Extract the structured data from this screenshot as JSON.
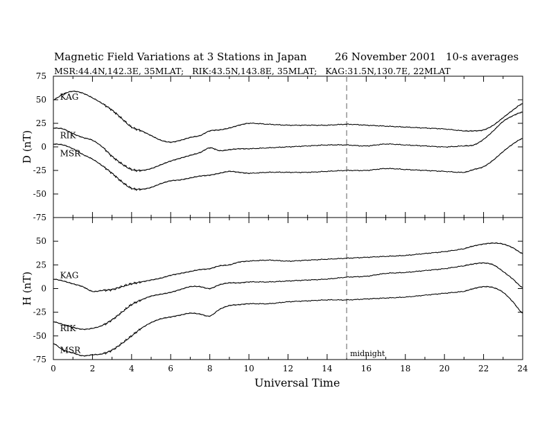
{
  "title": {
    "main": "Magnetic Field Variations at 3 Stations in Japan",
    "date": "26 November 2001",
    "averaging": "10-s averages",
    "stations": "MSR:44.4N,142.3E, 35MLAT;   RIK:43.5N,143.8E, 35MLAT;   KAG:31.5N,130.7E, 22MLAT"
  },
  "chart_data": [
    {
      "type": "line",
      "ylabel": "D (nT)",
      "xlim": [
        0,
        24
      ],
      "ylim": [
        -75,
        75
      ],
      "yticks": [
        75,
        50,
        25,
        0,
        -25,
        -50,
        -75
      ],
      "grid": false,
      "series": [
        {
          "name": "KAG",
          "x": [
            0,
            0.5,
            1,
            1.5,
            2,
            2.5,
            3,
            3.5,
            4,
            4.5,
            5,
            5.5,
            6,
            6.5,
            7,
            7.5,
            8,
            8.5,
            9,
            9.5,
            10,
            11,
            12,
            13,
            14,
            15,
            16,
            17,
            18,
            19,
            20,
            21,
            21.5,
            22,
            22.5,
            23,
            23.5,
            24
          ],
          "y": [
            50,
            56,
            59,
            57,
            52,
            46,
            39,
            30,
            21,
            17,
            12,
            7,
            5,
            7,
            10,
            12,
            17,
            18,
            20,
            23,
            25,
            24,
            23,
            23,
            23,
            24,
            23,
            22,
            21,
            20,
            19,
            17,
            17,
            18,
            23,
            31,
            39,
            46
          ]
        },
        {
          "name": "RIK",
          "x": [
            0,
            0.5,
            1,
            1.5,
            2,
            2.5,
            3,
            3.5,
            4,
            4.5,
            5,
            5.5,
            6,
            6.5,
            7,
            7.5,
            8,
            8.5,
            9,
            9.5,
            10,
            11,
            12,
            13,
            14,
            15,
            16,
            17,
            18,
            19,
            20,
            21,
            21.5,
            22,
            22.5,
            23,
            23.5,
            24
          ],
          "y": [
            20,
            19,
            14,
            10,
            7,
            0,
            -10,
            -18,
            -24,
            -25,
            -23,
            -19,
            -15,
            -12,
            -9,
            -6,
            -1,
            -4,
            -3,
            -2,
            -2,
            -1,
            0,
            1,
            2,
            2,
            1,
            3,
            2,
            1,
            0,
            1,
            2,
            8,
            17,
            27,
            33,
            37
          ]
        },
        {
          "name": "MSR",
          "x": [
            0,
            0.5,
            1,
            1.5,
            2,
            2.5,
            3,
            3.5,
            4,
            4.5,
            5,
            5.5,
            6,
            6.5,
            7,
            7.5,
            8,
            8.5,
            9,
            9.5,
            10,
            11,
            12,
            13,
            14,
            15,
            16,
            17,
            18,
            19,
            20,
            21,
            21.5,
            22,
            22.5,
            23,
            23.5,
            24
          ],
          "y": [
            3,
            2,
            -2,
            -8,
            -13,
            -20,
            -28,
            -37,
            -44,
            -45,
            -43,
            -39,
            -36,
            -35,
            -33,
            -31,
            -30,
            -28,
            -26,
            -27,
            -28,
            -27,
            -27,
            -27,
            -26,
            -25,
            -25,
            -23,
            -24,
            -25,
            -26,
            -27,
            -24,
            -21,
            -14,
            -5,
            3,
            9
          ]
        }
      ],
      "labels": [
        {
          "text": "KAG",
          "x": 0.2,
          "y": 53
        },
        {
          "text": "RIK",
          "x": 0.2,
          "y": 12
        },
        {
          "text": "MSR",
          "x": 0.2,
          "y": -7
        }
      ]
    },
    {
      "type": "line",
      "ylabel": "H (nT)",
      "xlabel": "Universal Time",
      "xlim": [
        0,
        24
      ],
      "ylim": [
        -75,
        75
      ],
      "yticks": [
        50,
        25,
        0,
        -25,
        -50,
        -75
      ],
      "xticks": [
        0,
        2,
        4,
        6,
        8,
        10,
        12,
        14,
        16,
        18,
        20,
        22,
        24
      ],
      "grid": false,
      "series": [
        {
          "name": "KAG",
          "x": [
            0,
            0.5,
            1,
            1.5,
            2,
            2.5,
            3,
            3.5,
            4,
            4.5,
            5,
            5.5,
            6,
            6.5,
            7,
            7.5,
            8,
            8.5,
            9,
            9.5,
            10,
            11,
            12,
            13,
            14,
            15,
            16,
            17,
            18,
            19,
            20,
            21,
            21.5,
            22,
            22.5,
            23,
            23.5,
            24
          ],
          "y": [
            10,
            8,
            5,
            2,
            -3,
            -2,
            -1,
            2,
            5,
            7,
            9,
            11,
            14,
            16,
            18,
            20,
            21,
            24,
            25,
            28,
            29,
            30,
            29,
            30,
            31,
            32,
            33,
            34,
            35,
            37,
            39,
            42,
            45,
            47,
            48,
            47,
            43,
            37
          ]
        },
        {
          "name": "RIK",
          "x": [
            0,
            0.5,
            1,
            1.5,
            2,
            2.5,
            3,
            3.5,
            4,
            4.5,
            5,
            5.5,
            6,
            6.5,
            7,
            7.5,
            8,
            8.5,
            9,
            9.5,
            10,
            11,
            12,
            13,
            14,
            15,
            16,
            17,
            18,
            19,
            20,
            21,
            21.5,
            22,
            22.5,
            23,
            23.5,
            24
          ],
          "y": [
            -35,
            -38,
            -41,
            -43,
            -42,
            -39,
            -33,
            -25,
            -17,
            -12,
            -8,
            -6,
            -4,
            -1,
            2,
            2,
            0,
            4,
            6,
            6,
            7,
            7,
            8,
            9,
            10,
            12,
            13,
            16,
            17,
            19,
            21,
            24,
            26,
            27,
            25,
            18,
            10,
            1
          ]
        },
        {
          "name": "MSR",
          "x": [
            0,
            0.5,
            1,
            1.5,
            2,
            2.5,
            3,
            3.5,
            4,
            4.5,
            5,
            5.5,
            6,
            6.5,
            7,
            7.5,
            8,
            8.5,
            9,
            9.5,
            10,
            11,
            12,
            13,
            14,
            15,
            16,
            17,
            18,
            19,
            20,
            21,
            21.5,
            22,
            22.5,
            23,
            23.5,
            24
          ],
          "y": [
            -58,
            -65,
            -68,
            -71,
            -70,
            -69,
            -65,
            -58,
            -50,
            -42,
            -36,
            -32,
            -30,
            -28,
            -26,
            -27,
            -29,
            -22,
            -18,
            -17,
            -16,
            -16,
            -14,
            -13,
            -12,
            -12,
            -11,
            -10,
            -9,
            -7,
            -5,
            -3,
            0,
            2,
            1,
            -4,
            -14,
            -26
          ]
        }
      ],
      "labels": [
        {
          "text": "KAG",
          "x": 0.2,
          "y": 14
        },
        {
          "text": "RIK",
          "x": 0.2,
          "y": -42
        },
        {
          "text": "MSR",
          "x": 0.2,
          "y": -65
        }
      ]
    }
  ],
  "midline": {
    "x": 15,
    "label": "midnight"
  }
}
